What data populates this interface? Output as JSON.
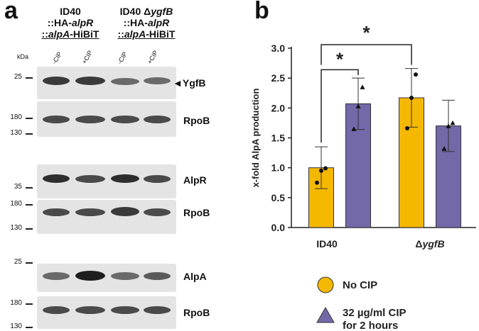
{
  "panel_a": {
    "letter": "a",
    "strain1": {
      "line1": "ID40",
      "line2": "::HA-",
      "line2_italic": "alpR",
      "line3": "::",
      "line3_italic": "alpA",
      "line3_end": "-HiBiT"
    },
    "strain2": {
      "line1": "ID40 Δ",
      "line1_italic": "ygfB",
      "line2": "::HA-",
      "line2_italic": "alpR",
      "line3": "::",
      "line3_italic": "alpA",
      "line3_end": "-HiBiT"
    },
    "lanes": [
      "-CIP",
      "+CIP",
      "-CIP",
      "+CIP"
    ],
    "kda_label": "kDa",
    "blots": [
      {
        "markers": [
          "25"
        ],
        "label": "◄YgfB"
      },
      {
        "markers": [
          "180",
          "130"
        ],
        "label": "RpoB"
      },
      {
        "markers": [
          "35"
        ],
        "label": "AlpR"
      },
      {
        "markers": [
          "180",
          "130"
        ],
        "label": "RpoB"
      },
      {
        "markers": [
          "25"
        ],
        "label": "AlpA"
      },
      {
        "markers": [
          "180",
          "130"
        ],
        "label": "RpoB"
      }
    ]
  },
  "panel_b": {
    "letter": "b"
  },
  "chart_data": {
    "type": "bar",
    "ylabel": "x-fold AlpA production",
    "xlabel": "",
    "ylim": [
      0.0,
      3.0
    ],
    "yticks": [
      "0.0",
      "0.5",
      "1.0",
      "1.5",
      "2.0",
      "2.5",
      "3.0"
    ],
    "categories": [
      "ID40",
      "ΔygfB"
    ],
    "series": [
      {
        "name": "No CIP",
        "color": "#f5b800",
        "values": [
          1.0,
          2.17
        ],
        "errors": [
          0.35,
          0.49
        ],
        "points": [
          [
            0.75,
            0.95,
            0.99
          ],
          [
            1.66,
            2.17,
            2.56
          ]
        ]
      },
      {
        "name": "32 µg/ml CIP for 2 hours",
        "color": "#7368a8",
        "values": [
          2.07,
          1.7
        ],
        "errors": [
          0.43,
          0.43
        ],
        "points": [
          [
            1.65,
            2.03,
            2.35
          ],
          [
            1.32,
            1.7,
            1.75
          ]
        ]
      }
    ],
    "significance": [
      {
        "label": "*",
        "between": "ID40 No CIP vs ID40 CIP"
      },
      {
        "label": "*",
        "between": "ID40 No CIP vs ΔygfB No CIP"
      }
    ],
    "legend": {
      "position": "bottom",
      "entries": [
        {
          "label": "No CIP",
          "shape": "circle",
          "color": "#f5b800"
        },
        {
          "label": "32 µg/ml CIP",
          "label2": "for 2 hours",
          "shape": "triangle",
          "color": "#7368a8"
        }
      ]
    }
  }
}
